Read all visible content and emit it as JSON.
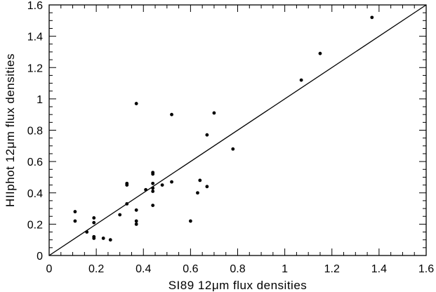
{
  "chart_data": {
    "type": "scatter",
    "title": "",
    "xlabel": "SI89 12μm flux densities",
    "ylabel": "HIIphot 12μm flux densities",
    "xlim": [
      0,
      1.6
    ],
    "ylim": [
      0,
      1.6
    ],
    "xticks": [
      "0",
      "0.2",
      "0.4",
      "0.6",
      "0.8",
      "1",
      "1.2",
      "1.4",
      "1.6"
    ],
    "yticks": [
      "0",
      "0.2",
      "0.4",
      "0.6",
      "0.8",
      "1",
      "1.2",
      "1.4",
      "1.6"
    ],
    "reference_line": "y = x",
    "grid": false,
    "series": [
      {
        "points": [
          [
            0.11,
            0.28
          ],
          [
            0.11,
            0.22
          ],
          [
            0.16,
            0.15
          ],
          [
            0.19,
            0.24
          ],
          [
            0.19,
            0.21
          ],
          [
            0.19,
            0.12
          ],
          [
            0.19,
            0.11
          ],
          [
            0.23,
            0.11
          ],
          [
            0.26,
            0.1
          ],
          [
            0.3,
            0.26
          ],
          [
            0.33,
            0.33
          ],
          [
            0.33,
            0.46
          ],
          [
            0.33,
            0.45
          ],
          [
            0.37,
            0.97
          ],
          [
            0.37,
            0.29
          ],
          [
            0.37,
            0.22
          ],
          [
            0.37,
            0.2
          ],
          [
            0.41,
            0.42
          ],
          [
            0.44,
            0.53
          ],
          [
            0.44,
            0.52
          ],
          [
            0.44,
            0.46
          ],
          [
            0.44,
            0.43
          ],
          [
            0.44,
            0.41
          ],
          [
            0.44,
            0.32
          ],
          [
            0.48,
            0.45
          ],
          [
            0.52,
            0.9
          ],
          [
            0.52,
            0.47
          ],
          [
            0.6,
            0.22
          ],
          [
            0.63,
            0.4
          ],
          [
            0.64,
            0.48
          ],
          [
            0.67,
            0.77
          ],
          [
            0.67,
            0.44
          ],
          [
            0.7,
            0.91
          ],
          [
            0.78,
            0.68
          ],
          [
            1.07,
            1.12
          ],
          [
            1.15,
            1.29
          ],
          [
            1.37,
            1.52
          ]
        ]
      }
    ]
  }
}
